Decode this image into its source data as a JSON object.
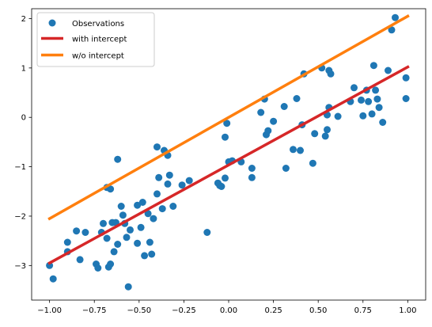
{
  "chart_data": {
    "type": "scatter",
    "title": "",
    "xlabel": "",
    "ylabel": "",
    "xlim": [
      -1.1,
      1.1
    ],
    "ylim": [
      -3.7,
      2.2
    ],
    "xticks": [
      -1.0,
      -0.75,
      -0.5,
      -0.25,
      0.0,
      0.25,
      0.5,
      0.75,
      1.0
    ],
    "xtick_labels": [
      "−1.00",
      "−0.75",
      "−0.50",
      "−0.25",
      "0.00",
      "0.25",
      "0.50",
      "0.75",
      "1.00"
    ],
    "yticks": [
      -3,
      -2,
      -1,
      0,
      1,
      2
    ],
    "ytick_labels": [
      "−3",
      "−2",
      "−1",
      "0",
      "1",
      "2"
    ],
    "grid": false,
    "legend_position": "top-left",
    "series": [
      {
        "name": "Observations",
        "kind": "scatter",
        "color": "#1f77b4",
        "points": [
          [
            -1.0,
            -3.0
          ],
          [
            -0.98,
            -3.27
          ],
          [
            -0.9,
            -2.72
          ],
          [
            -0.9,
            -2.53
          ],
          [
            -0.85,
            -2.3
          ],
          [
            -0.83,
            -2.88
          ],
          [
            -0.8,
            -2.33
          ],
          [
            -0.74,
            -2.97
          ],
          [
            -0.73,
            -3.05
          ],
          [
            -0.71,
            -2.33
          ],
          [
            -0.7,
            -2.15
          ],
          [
            -0.68,
            -2.45
          ],
          [
            -0.68,
            -1.42
          ],
          [
            -0.67,
            -3.03
          ],
          [
            -0.66,
            -2.97
          ],
          [
            -0.66,
            -1.45
          ],
          [
            -0.65,
            -2.13
          ],
          [
            -0.64,
            -2.72
          ],
          [
            -0.63,
            -2.13
          ],
          [
            -0.62,
            -2.57
          ],
          [
            -0.62,
            -0.85
          ],
          [
            -0.6,
            -1.8
          ],
          [
            -0.59,
            -1.98
          ],
          [
            -0.58,
            -2.15
          ],
          [
            -0.57,
            -2.43
          ],
          [
            -0.56,
            -3.43
          ],
          [
            -0.55,
            -2.28
          ],
          [
            -0.51,
            -2.55
          ],
          [
            -0.51,
            -1.78
          ],
          [
            -0.49,
            -2.23
          ],
          [
            -0.48,
            -1.72
          ],
          [
            -0.47,
            -2.8
          ],
          [
            -0.45,
            -1.95
          ],
          [
            -0.44,
            -2.53
          ],
          [
            -0.43,
            -2.77
          ],
          [
            -0.42,
            -2.05
          ],
          [
            -0.4,
            -1.55
          ],
          [
            -0.4,
            -0.6
          ],
          [
            -0.39,
            -1.22
          ],
          [
            -0.37,
            -1.85
          ],
          [
            -0.36,
            -0.67
          ],
          [
            -0.34,
            -1.35
          ],
          [
            -0.34,
            -0.77
          ],
          [
            -0.33,
            -1.17
          ],
          [
            -0.31,
            -1.8
          ],
          [
            -0.26,
            -1.37
          ],
          [
            -0.22,
            -1.28
          ],
          [
            -0.12,
            -2.33
          ],
          [
            -0.06,
            -1.33
          ],
          [
            -0.05,
            -1.38
          ],
          [
            -0.04,
            -1.4
          ],
          [
            -0.02,
            -1.23
          ],
          [
            -0.02,
            -0.4
          ],
          [
            -0.01,
            -0.12
          ],
          [
            0.0,
            -0.9
          ],
          [
            0.02,
            -0.88
          ],
          [
            0.07,
            -0.9
          ],
          [
            0.13,
            -1.03
          ],
          [
            0.13,
            -1.22
          ],
          [
            0.18,
            0.1
          ],
          [
            0.2,
            0.37
          ],
          [
            0.21,
            -0.35
          ],
          [
            0.22,
            -0.27
          ],
          [
            0.25,
            -0.08
          ],
          [
            0.31,
            0.22
          ],
          [
            0.32,
            -1.03
          ],
          [
            0.36,
            -0.65
          ],
          [
            0.38,
            0.38
          ],
          [
            0.4,
            -0.67
          ],
          [
            0.41,
            -0.15
          ],
          [
            0.42,
            0.88
          ],
          [
            0.47,
            -0.93
          ],
          [
            0.48,
            -0.33
          ],
          [
            0.52,
            1.0
          ],
          [
            0.54,
            -0.38
          ],
          [
            0.55,
            0.05
          ],
          [
            0.55,
            -0.25
          ],
          [
            0.56,
            0.2
          ],
          [
            0.56,
            0.95
          ],
          [
            0.57,
            0.88
          ],
          [
            0.61,
            0.02
          ],
          [
            0.68,
            0.32
          ],
          [
            0.7,
            0.6
          ],
          [
            0.74,
            0.35
          ],
          [
            0.75,
            0.03
          ],
          [
            0.77,
            0.55
          ],
          [
            0.78,
            0.32
          ],
          [
            0.8,
            0.07
          ],
          [
            0.81,
            1.05
          ],
          [
            0.82,
            0.55
          ],
          [
            0.83,
            0.37
          ],
          [
            0.84,
            0.2
          ],
          [
            0.86,
            -0.1
          ],
          [
            0.89,
            0.95
          ],
          [
            0.91,
            1.77
          ],
          [
            0.93,
            2.02
          ],
          [
            0.99,
            0.8
          ],
          [
            0.99,
            0.38
          ]
        ]
      },
      {
        "name": "with intercept",
        "kind": "line",
        "color": "#d62728",
        "x": [
          -1.0,
          1.0
        ],
        "y": [
          -2.95,
          1.02
        ]
      },
      {
        "name": "w/o intercept",
        "kind": "line",
        "color": "#ff7f0e",
        "x": [
          -1.0,
          1.0
        ],
        "y": [
          -2.05,
          2.05
        ]
      }
    ]
  }
}
